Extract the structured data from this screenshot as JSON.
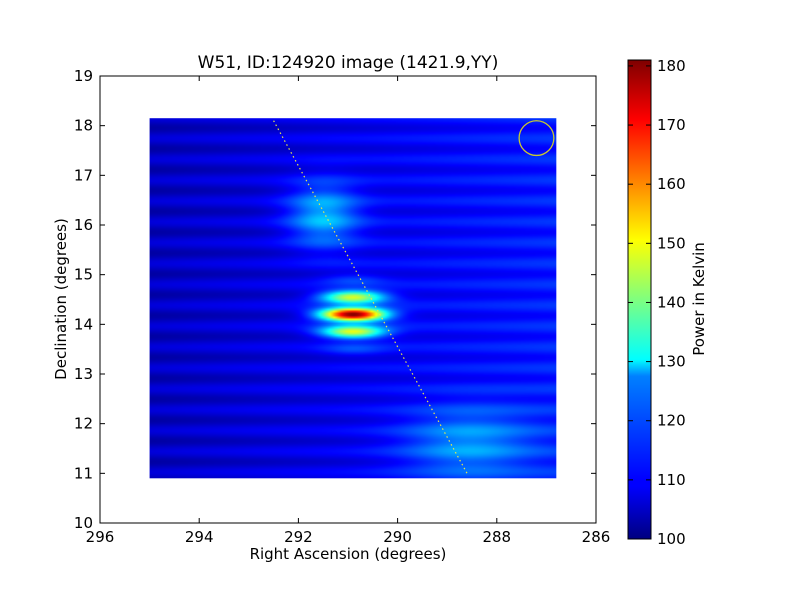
{
  "chart_data": {
    "type": "heatmap",
    "title": "W51, ID:124920 image (1421.9,YY)",
    "xlabel": "Right Ascension (degrees)",
    "ylabel": "Declination (degrees)",
    "xlim": [
      296,
      286
    ],
    "ylim": [
      10,
      19
    ],
    "xticks": [
      "296",
      "294",
      "292",
      "290",
      "288",
      "286"
    ],
    "yticks": [
      "10",
      "11",
      "12",
      "13",
      "14",
      "15",
      "16",
      "17",
      "18",
      "19"
    ],
    "colorbar": {
      "label": "Power in Kelvin",
      "range": [
        100,
        181
      ],
      "ticks": [
        "100",
        "110",
        "120",
        "130",
        "140",
        "150",
        "160",
        "170",
        "180"
      ],
      "colormap": "jet"
    },
    "map_extent": {
      "ra": [
        295.0,
        286.8
      ],
      "dec": [
        10.9,
        18.15
      ]
    },
    "background_level": 105,
    "sources": [
      {
        "ra": 290.9,
        "dec": 14.2,
        "peak": 180,
        "sigma_ra": 0.45,
        "sigma_dec": 0.33
      },
      {
        "ra": 291.5,
        "dec": 16.2,
        "peak": 122,
        "sigma_ra": 0.5,
        "sigma_dec": 0.45
      },
      {
        "ra": 288.6,
        "dec": 11.6,
        "peak": 117,
        "sigma_ra": 0.9,
        "sigma_dec": 0.5
      }
    ],
    "scan_track": {
      "from": {
        "ra": 292.5,
        "dec": 18.1
      },
      "to": {
        "ra": 288.6,
        "dec": 11.0
      },
      "color": "#e8e84a"
    },
    "beam_marker": {
      "ra": 287.2,
      "dec": 17.75,
      "radius_deg": 0.35,
      "color": "#c8c832"
    }
  }
}
